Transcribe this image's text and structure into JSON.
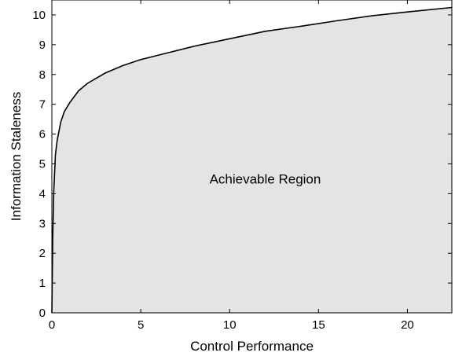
{
  "chart_data": {
    "type": "area",
    "title": "",
    "xlabel": "Control Performance",
    "ylabel": "Information Staleness",
    "xlim": [
      0,
      22.5
    ],
    "ylim": [
      0,
      10.5
    ],
    "xticks": [
      "0",
      "5",
      "10",
      "15",
      "20"
    ],
    "yticks": [
      "0",
      "1",
      "2",
      "3",
      "4",
      "5",
      "6",
      "7",
      "8",
      "9",
      "10"
    ],
    "grid": false,
    "fill_color": "#e4e4e4",
    "line_color": "#000000",
    "annotation": "Achievable Region",
    "annotation_position": {
      "x": 12,
      "y": 4.5
    },
    "series": [
      {
        "x": [
          0,
          0.05,
          0.1,
          0.2,
          0.3,
          0.5,
          0.7,
          1,
          1.5,
          2,
          3,
          4,
          5,
          6,
          8,
          10,
          12,
          14,
          16,
          18,
          20,
          22.5
        ],
        "y": [
          0,
          2.5,
          4.0,
          5.3,
          5.8,
          6.4,
          6.75,
          7.05,
          7.45,
          7.7,
          8.05,
          8.3,
          8.5,
          8.65,
          8.95,
          9.2,
          9.45,
          9.62,
          9.8,
          9.97,
          10.1,
          10.25
        ]
      }
    ]
  }
}
